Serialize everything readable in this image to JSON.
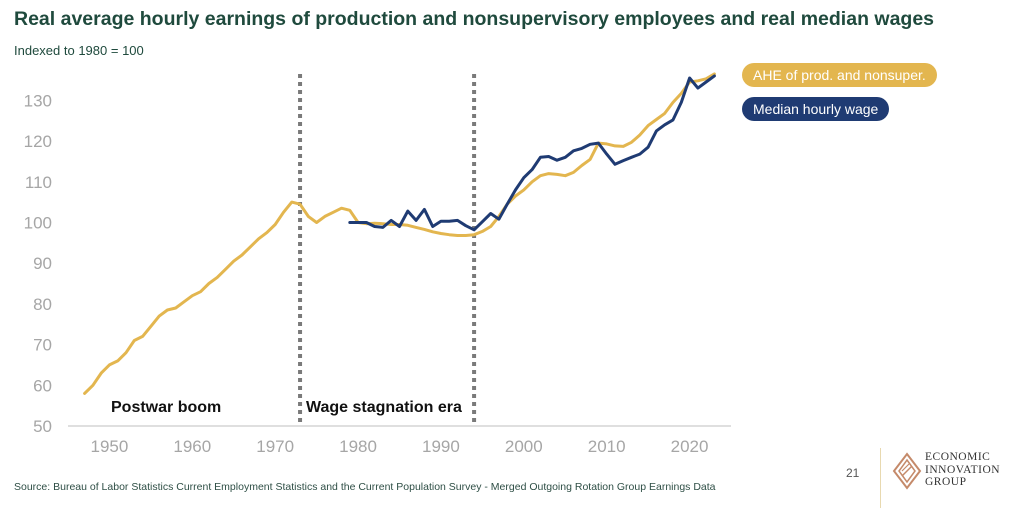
{
  "title": "Real average hourly earnings of production and nonsupervisory employees and real median wages",
  "subtitle": "Indexed to 1980 = 100",
  "legend": {
    "ahe": "AHE of prod. and nonsuper.",
    "median": "Median hourly wage"
  },
  "colors": {
    "ahe": "#e3b64f",
    "median": "#1f3b73",
    "divider": "#7a7a7a",
    "axis_text": "#a6a6a6"
  },
  "source": "Source: Bureau of Labor Statistics Current Employment Statistics and the Current Population Survey - Merged Outgoing Rotation Group Earnings Data",
  "page_number": "21",
  "logo": {
    "icon": "diamond-logo-icon",
    "lines": [
      "ECONOMIC",
      "INNOVATION",
      "GROUP"
    ]
  },
  "chart_data": {
    "type": "line",
    "title": "Real average hourly earnings of production and nonsupervisory employees and real median wages",
    "ylabel": "Indexed to 1980 = 100",
    "xlabel": "",
    "xlim": [
      1945,
      2025
    ],
    "ylim": [
      50,
      135
    ],
    "xticks": [
      1950,
      1960,
      1970,
      1980,
      1990,
      2000,
      2010,
      2020
    ],
    "yticks": [
      50,
      60,
      70,
      80,
      90,
      100,
      110,
      120,
      130
    ],
    "annotations": [
      {
        "text": "Postwar boom",
        "x": 1954
      },
      {
        "text": "Wage stagnation era",
        "x": 1983
      }
    ],
    "dividers": [
      1973,
      1994
    ],
    "series": [
      {
        "name": "AHE of prod. and nonsuper.",
        "x": [
          1947,
          1948,
          1949,
          1950,
          1951,
          1952,
          1953,
          1954,
          1955,
          1956,
          1957,
          1958,
          1959,
          1960,
          1961,
          1962,
          1963,
          1964,
          1965,
          1966,
          1967,
          1968,
          1969,
          1970,
          1971,
          1972,
          1973,
          1974,
          1975,
          1976,
          1977,
          1978,
          1979,
          1980,
          1981,
          1982,
          1983,
          1984,
          1985,
          1986,
          1987,
          1988,
          1989,
          1990,
          1991,
          1992,
          1993,
          1994,
          1995,
          1996,
          1997,
          1998,
          1999,
          2000,
          2001,
          2002,
          2003,
          2004,
          2005,
          2006,
          2007,
          2008,
          2009,
          2010,
          2011,
          2012,
          2013,
          2014,
          2015,
          2016,
          2017,
          2018,
          2019,
          2020,
          2021,
          2022,
          2023
        ],
        "values": [
          58,
          60,
          63,
          65,
          66,
          68,
          71,
          72,
          74.5,
          77,
          78.5,
          79,
          80.5,
          82,
          83,
          85,
          86.5,
          88.5,
          90.5,
          92,
          94,
          96,
          97.5,
          99.5,
          102.5,
          105,
          104.5,
          101.5,
          100,
          101.5,
          102.5,
          103.5,
          103,
          100,
          99.7,
          99.8,
          99.7,
          99.5,
          99.5,
          99.3,
          98.8,
          98.3,
          97.7,
          97.3,
          97,
          96.8,
          96.8,
          97,
          97.8,
          99,
          101.5,
          104.5,
          106.5,
          108,
          110,
          111.5,
          112,
          111.8,
          111.5,
          112.3,
          114,
          115.5,
          119.5,
          119.3,
          118.8,
          118.7,
          119.7,
          121.5,
          123.8,
          125.3,
          126.8,
          129.5,
          131.7,
          134.5,
          134.8,
          135.3,
          136.5
        ]
      },
      {
        "name": "Median hourly wage",
        "x": [
          1979,
          1980,
          1981,
          1982,
          1983,
          1984,
          1985,
          1986,
          1987,
          1988,
          1989,
          1990,
          1991,
          1992,
          1993,
          1994,
          1995,
          1996,
          1997,
          1998,
          1999,
          2000,
          2001,
          2002,
          2003,
          2004,
          2005,
          2006,
          2007,
          2008,
          2009,
          2010,
          2011,
          2012,
          2013,
          2014,
          2015,
          2016,
          2017,
          2018,
          2019,
          2020,
          2021,
          2022,
          2023
        ],
        "values": [
          100,
          100,
          100,
          99,
          98.8,
          100.5,
          99,
          102.8,
          100.5,
          103.2,
          99,
          100.3,
          100.3,
          100.5,
          99.2,
          98.2,
          100.2,
          102.2,
          100.8,
          104.5,
          108,
          111,
          113,
          116,
          116.2,
          115.3,
          116,
          117.6,
          118.2,
          119.2,
          119.5,
          116.8,
          114.3,
          115.2,
          116,
          116.8,
          118.5,
          122.5,
          124,
          125.2,
          129.5,
          135.5,
          133,
          134.5,
          136
        ]
      }
    ]
  }
}
